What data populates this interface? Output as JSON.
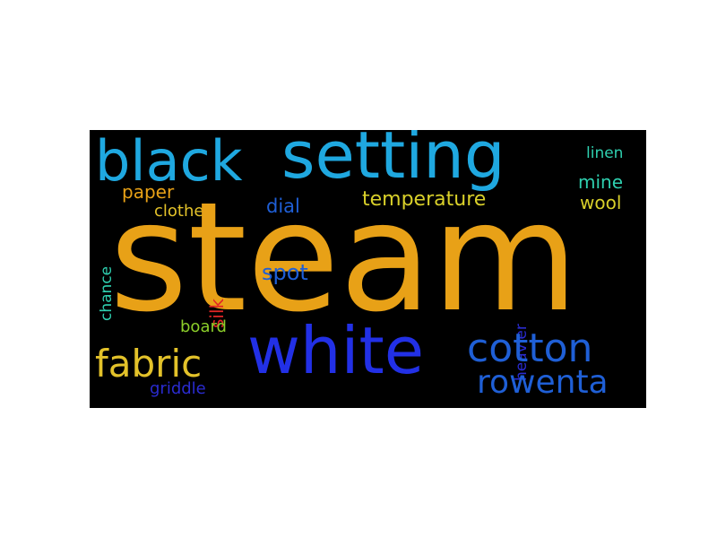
{
  "wordcloud": {
    "background": "#000000",
    "words": {
      "steam": {
        "text": "steam",
        "color": "#e8a117"
      },
      "setting": {
        "text": "setting",
        "color": "#1fa8e0"
      },
      "black": {
        "text": "black",
        "color": "#1fa8e0"
      },
      "white": {
        "text": "white",
        "color": "#2230e6"
      },
      "cotton": {
        "text": "cotton",
        "color": "#1f5fd6"
      },
      "rowenta": {
        "text": "rowenta",
        "color": "#1f5fd6"
      },
      "fabric": {
        "text": "fabric",
        "color": "#e3c22a"
      },
      "temperature": {
        "text": "temperature",
        "color": "#d9d02a"
      },
      "paper": {
        "text": "paper",
        "color": "#e8a117"
      },
      "clothes": {
        "text": "clothes",
        "color": "#e3c22a"
      },
      "dial": {
        "text": "dial",
        "color": "#1f5fd6"
      },
      "spot": {
        "text": "spot",
        "color": "#1f5fd6"
      },
      "mine": {
        "text": "mine",
        "color": "#2fd0b0"
      },
      "wool": {
        "text": "wool",
        "color": "#d9d02a"
      },
      "linen": {
        "text": "linen",
        "color": "#2fd0b0"
      },
      "chance": {
        "text": "chance",
        "color": "#2fd0b0"
      },
      "silk": {
        "text": "silk",
        "color": "#e02626"
      },
      "heavier": {
        "text": "heavier",
        "color": "#2a2bd0"
      },
      "board": {
        "text": "board",
        "color": "#8ccf2a"
      },
      "griddle": {
        "text": "griddle",
        "color": "#2a2bd0"
      }
    }
  }
}
